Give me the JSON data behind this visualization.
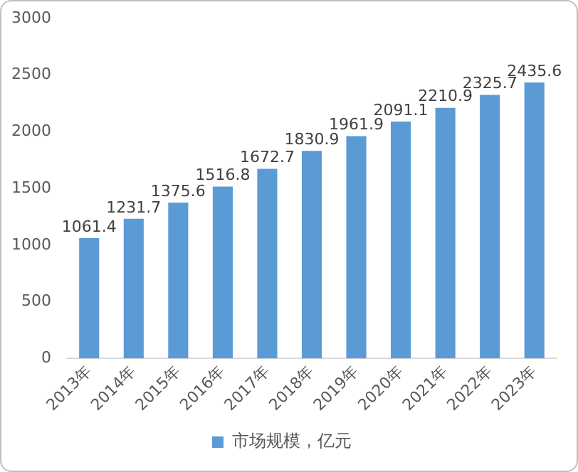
{
  "chart_data": {
    "type": "bar",
    "categories": [
      "2013年",
      "2014年",
      "2015年",
      "2016年",
      "2017年",
      "2018年",
      "2019年",
      "2020年",
      "2021年",
      "2022年",
      "2023年"
    ],
    "series": [
      {
        "name": "市场规模，亿元",
        "color": "#5b9bd5",
        "values": [
          1061.4,
          1231.7,
          1375.6,
          1516.8,
          1672.7,
          1830.9,
          1961.9,
          2091.1,
          2210.9,
          2325.7,
          2435.6
        ]
      }
    ],
    "ylim": [
      0,
      3000
    ],
    "yticks": [
      0,
      500,
      1000,
      1500,
      2000,
      2500,
      3000
    ],
    "grid": false,
    "legend": "bottom",
    "data_labels": true
  }
}
